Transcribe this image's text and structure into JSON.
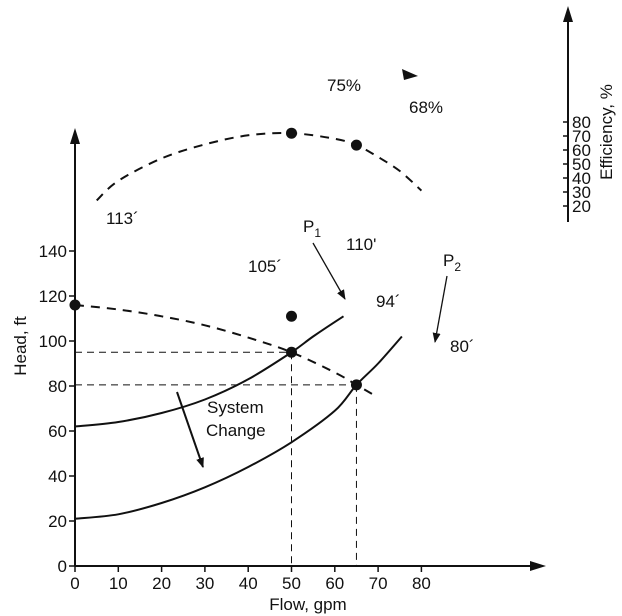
{
  "chart_data": {
    "type": "line",
    "x_axis": {
      "label": "Flow, gpm",
      "ticks": [
        0,
        10,
        20,
        30,
        40,
        50,
        60,
        70,
        80
      ],
      "range": [
        0,
        90
      ]
    },
    "y_axis": {
      "label": "Head, ft",
      "ticks": [
        0,
        20,
        40,
        60,
        80,
        100,
        120,
        140
      ],
      "range": [
        0,
        157
      ]
    },
    "efficiency_axis": {
      "label": "Efficiency, %",
      "ticks": [
        20,
        30,
        40,
        50,
        60,
        70,
        80
      ]
    },
    "series": [
      {
        "style": "dashed",
        "role": "pump curve",
        "x": [
          0,
          10,
          20,
          30,
          40,
          50,
          60,
          65,
          69
        ],
        "y": [
          116,
          114,
          111,
          107,
          101.5,
          95,
          86,
          80.5,
          76
        ]
      },
      {
        "style": "solid",
        "role": "system curve",
        "x": [
          0,
          10,
          20,
          30,
          40,
          50,
          55,
          62
        ],
        "y": [
          62,
          64,
          68,
          74,
          83,
          95,
          102,
          111
        ]
      },
      {
        "style": "solid",
        "role": "system curve",
        "x": [
          0,
          10,
          20,
          30,
          40,
          50,
          60,
          65,
          70,
          75.5
        ],
        "y": [
          21,
          23,
          28,
          35,
          44,
          55,
          69,
          80.5,
          90,
          102
        ]
      },
      {
        "style": "dashed",
        "role": "efficiency curve",
        "x": [
          5,
          10,
          20,
          30,
          40,
          50,
          60,
          65,
          70,
          75,
          80
        ],
        "y": [
          24,
          38,
          54,
          64,
          70.5,
          72,
          68,
          63.5,
          55,
          45,
          31
        ]
      }
    ],
    "points": [
      {
        "x": 0,
        "y": 116,
        "axis": "head"
      },
      {
        "x": 50,
        "y": 95,
        "axis": "head"
      },
      {
        "x": 65,
        "y": 80.5,
        "axis": "head"
      },
      {
        "x": 50,
        "y": 111,
        "axis": "head"
      },
      {
        "x": 50,
        "y": 72,
        "axis": "efficiency"
      },
      {
        "x": 65,
        "y": 63.5,
        "axis": "efficiency"
      }
    ],
    "annotations": {
      "p1": "P",
      "p1_sub": "1",
      "p2": "P",
      "p2_sub": "2",
      "head_113": "113´",
      "head_105": "105´",
      "head_94": "94´",
      "head_80": "80´",
      "head_110": "110'",
      "eff_75": "75%",
      "eff_68": "68%",
      "system_change_1": "System",
      "system_change_2": "Change"
    },
    "grid": false,
    "legend": "none"
  }
}
